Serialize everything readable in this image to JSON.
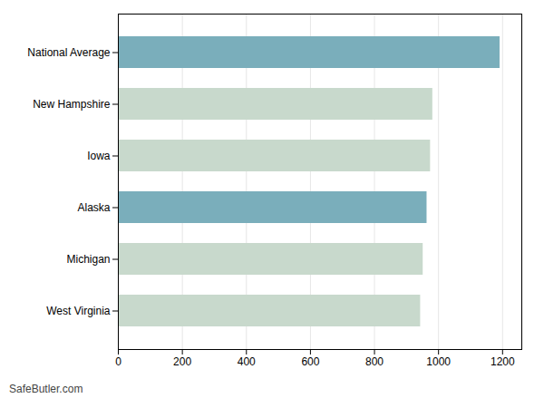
{
  "chart_data": {
    "type": "bar",
    "orientation": "horizontal",
    "categories": [
      "National Average",
      "New Hampshire",
      "Iowa",
      "Alaska",
      "Michigan",
      "West Virginia"
    ],
    "values": [
      1192,
      982,
      975,
      964,
      952,
      944
    ],
    "colors": [
      "#7AAEBB",
      "#C8D9CC",
      "#C8D9CC",
      "#7AAEBB",
      "#C8D9CC",
      "#C8D9CC"
    ],
    "xlim": [
      0,
      1260
    ],
    "xticks": [
      0,
      200,
      400,
      600,
      800,
      1000,
      1200
    ],
    "grid": true,
    "caption": "SafeButler.com"
  }
}
